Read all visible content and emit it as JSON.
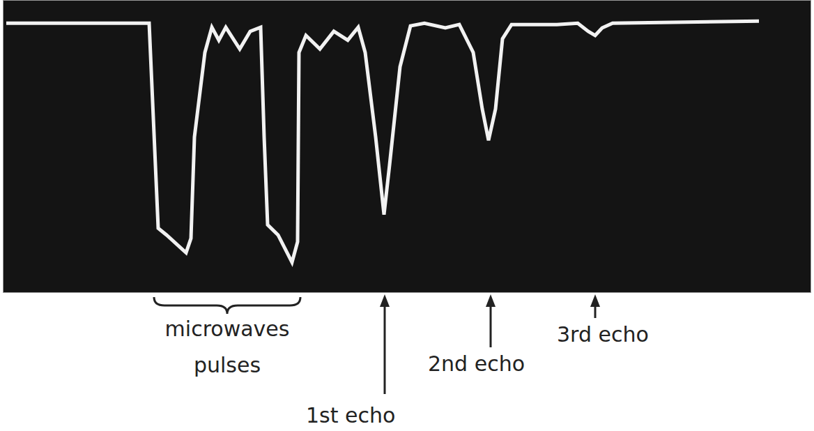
{
  "chart_data": {
    "type": "line",
    "grid": true,
    "tick_labels": false,
    "xlim": [
      -5.2,
      6.4
    ],
    "ylim": [
      -2,
      2.3
    ],
    "xticks": [
      -4,
      -3,
      -2,
      -1,
      0,
      1,
      2,
      3,
      4,
      5
    ],
    "yticks": [
      -1,
      0,
      1,
      2
    ],
    "color": "#f2f2f2",
    "x": [
      -5.15,
      -3.1,
      -2.97,
      -2.85,
      -2.57,
      -2.5,
      -2.45,
      -2.3,
      -2.2,
      -2.1,
      -2.0,
      -1.8,
      -1.65,
      -1.5,
      -1.45,
      -1.4,
      -1.25,
      -1.05,
      -0.97,
      -0.95,
      -0.85,
      -0.65,
      -0.45,
      -0.25,
      -0.1,
      0,
      0.15,
      0.27,
      0.35,
      0.5,
      0.65,
      0.85,
      1.15,
      1.35,
      1.55,
      1.68,
      1.77,
      1.87,
      1.97,
      2.1,
      2.75,
      3.05,
      3.2,
      3.3,
      3.4,
      3.55,
      5.65
    ],
    "values": [
      1.96,
      1.96,
      -1.05,
      -1.15,
      -1.41,
      -1.2,
      0.29,
      1.53,
      1.9,
      1.71,
      1.9,
      1.58,
      1.84,
      1.9,
      0.29,
      -1.0,
      -1.15,
      -1.55,
      -1.25,
      1.53,
      1.78,
      1.58,
      1.84,
      1.71,
      1.9,
      1.53,
      0.29,
      -0.85,
      -0.12,
      1.32,
      1.92,
      1.96,
      1.89,
      1.94,
      1.53,
      0.7,
      0.24,
      0.7,
      1.73,
      1.94,
      1.94,
      1.96,
      1.84,
      1.78,
      1.89,
      1.96,
      1.99
    ],
    "annotations": [
      {
        "text": "microwaves pulses",
        "x_range": [
          -3.03,
          -0.93
        ]
      },
      {
        "text": "1st echo",
        "x": 0.28
      },
      {
        "text": "2nd echo",
        "x": 1.8
      },
      {
        "text": "3rd echo",
        "x": 3.3
      }
    ]
  }
}
